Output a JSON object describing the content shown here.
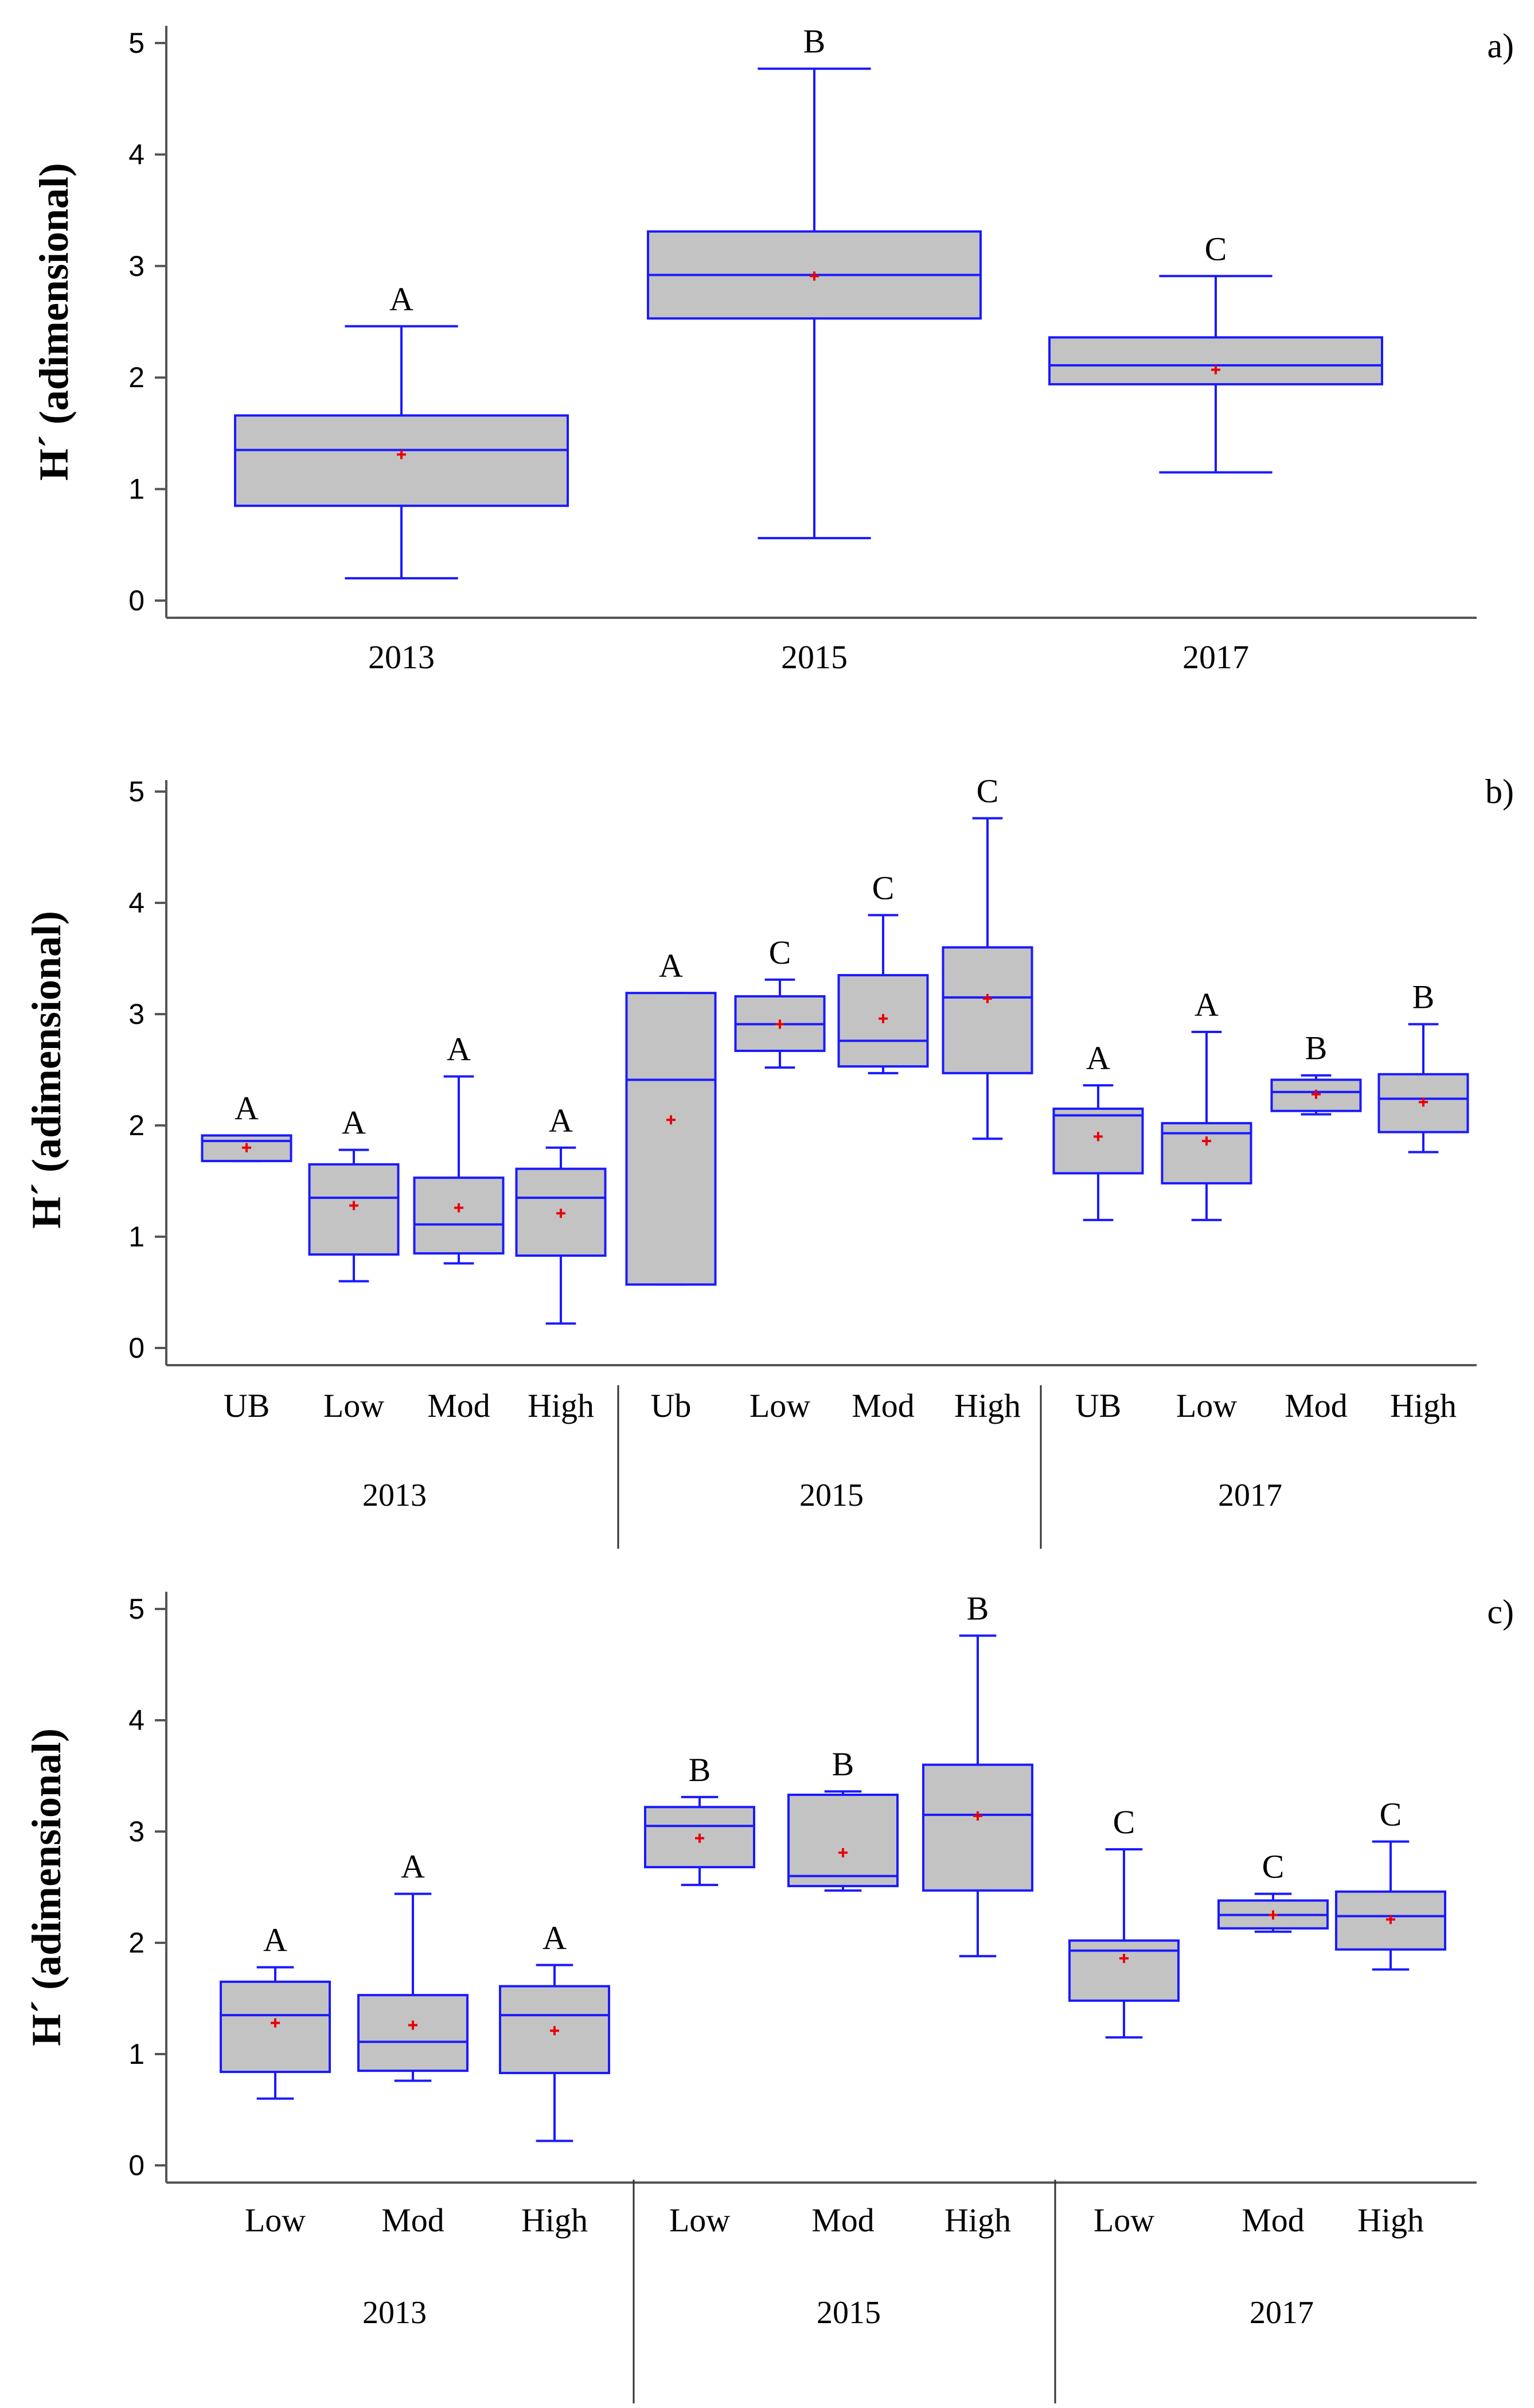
{
  "colors": {
    "box_fill": "#c3c3c3",
    "box_stroke": "#1a1aff",
    "mean_marker": "#e8000b",
    "axis": "#555555"
  },
  "chart_data": [
    {
      "type": "box",
      "panel": "a)",
      "ylabel": "H´ (adimensional)",
      "ylim": [
        0,
        5
      ],
      "yticks": [
        0,
        1,
        2,
        3,
        4,
        5
      ],
      "categories": [
        "2013",
        "2015",
        "2017"
      ],
      "groups": [],
      "boxes": [
        {
          "label": "2013",
          "min": 0.2,
          "q1": 0.85,
          "median": 1.35,
          "q3": 1.66,
          "max": 2.46,
          "mean": 1.31,
          "letter": "A"
        },
        {
          "label": "2015",
          "min": 0.56,
          "q1": 2.53,
          "median": 2.92,
          "q3": 3.31,
          "max": 4.77,
          "mean": 2.91,
          "letter": "B"
        },
        {
          "label": "2017",
          "min": 1.15,
          "q1": 1.94,
          "median": 2.11,
          "q3": 2.36,
          "max": 2.91,
          "mean": 2.07,
          "letter": "C"
        }
      ]
    },
    {
      "type": "box",
      "panel": "b)",
      "ylabel": "H´ (adimensional)",
      "ylim": [
        0,
        5
      ],
      "yticks": [
        0,
        1,
        2,
        3,
        4,
        5
      ],
      "categories": [
        "UB",
        "Low",
        "Mod",
        "High",
        "Ub",
        "Low",
        "Mod",
        "High",
        "UB",
        "Low",
        "Mod",
        "High"
      ],
      "groups": [
        {
          "name": "2013",
          "start": 0,
          "end": 3
        },
        {
          "name": "2015",
          "start": 4,
          "end": 7
        },
        {
          "name": "2017",
          "start": 8,
          "end": 11
        }
      ],
      "boxes": [
        {
          "label": "UB",
          "min": 1.68,
          "q1": 1.68,
          "median": 1.86,
          "q3": 1.91,
          "max": 1.91,
          "mean": 1.8,
          "letter": "A"
        },
        {
          "label": "Low",
          "min": 0.6,
          "q1": 0.84,
          "median": 1.35,
          "q3": 1.65,
          "max": 1.78,
          "mean": 1.28,
          "letter": "A"
        },
        {
          "label": "Mod",
          "min": 0.76,
          "q1": 0.85,
          "median": 1.11,
          "q3": 1.53,
          "max": 2.44,
          "mean": 1.26,
          "letter": "A"
        },
        {
          "label": "High",
          "min": 0.22,
          "q1": 0.83,
          "median": 1.35,
          "q3": 1.61,
          "max": 1.8,
          "mean": 1.21,
          "letter": "A"
        },
        {
          "label": "Ub",
          "min": 0.57,
          "q1": 0.57,
          "median": 2.41,
          "q3": 3.19,
          "max": 3.19,
          "mean": 2.05,
          "letter": "A"
        },
        {
          "label": "Low",
          "min": 2.52,
          "q1": 2.67,
          "median": 2.91,
          "q3": 3.16,
          "max": 3.31,
          "mean": 2.91,
          "letter": "C"
        },
        {
          "label": "Mod",
          "min": 2.47,
          "q1": 2.53,
          "median": 2.76,
          "q3": 3.35,
          "max": 3.89,
          "mean": 2.96,
          "letter": "C"
        },
        {
          "label": "High",
          "min": 1.88,
          "q1": 2.47,
          "median": 3.15,
          "q3": 3.6,
          "max": 4.76,
          "mean": 3.14,
          "letter": "C"
        },
        {
          "label": "UB",
          "min": 1.15,
          "q1": 1.57,
          "median": 2.09,
          "q3": 2.15,
          "max": 2.36,
          "mean": 1.9,
          "letter": "A"
        },
        {
          "label": "Low",
          "min": 1.15,
          "q1": 1.48,
          "median": 1.93,
          "q3": 2.02,
          "max": 2.84,
          "mean": 1.86,
          "letter": "A"
        },
        {
          "label": "Mod",
          "min": 2.1,
          "q1": 2.13,
          "median": 2.3,
          "q3": 2.41,
          "max": 2.45,
          "mean": 2.28,
          "letter": "B"
        },
        {
          "label": "High",
          "min": 1.76,
          "q1": 1.94,
          "median": 2.24,
          "q3": 2.46,
          "max": 2.91,
          "mean": 2.21,
          "letter": "B"
        }
      ]
    },
    {
      "type": "box",
      "panel": "c)",
      "ylabel": "H´ (adimensional)",
      "ylim": [
        0,
        5
      ],
      "yticks": [
        0,
        1,
        2,
        3,
        4,
        5
      ],
      "categories": [
        "Low",
        "Mod",
        "High",
        "Low",
        "Mod",
        "High",
        "Low",
        "Mod",
        "High"
      ],
      "groups": [
        {
          "name": "2013",
          "start": 0,
          "end": 2
        },
        {
          "name": "2015",
          "start": 3,
          "end": 5
        },
        {
          "name": "2017",
          "start": 6,
          "end": 8
        }
      ],
      "boxes": [
        {
          "label": "Low",
          "min": 0.6,
          "q1": 0.84,
          "median": 1.35,
          "q3": 1.65,
          "max": 1.78,
          "mean": 1.28,
          "letter": "A"
        },
        {
          "label": "Mod",
          "min": 0.76,
          "q1": 0.85,
          "median": 1.11,
          "q3": 1.53,
          "max": 2.44,
          "mean": 1.26,
          "letter": "A"
        },
        {
          "label": "High",
          "min": 0.22,
          "q1": 0.83,
          "median": 1.35,
          "q3": 1.61,
          "max": 1.8,
          "mean": 1.21,
          "letter": "A"
        },
        {
          "label": "Low",
          "min": 2.52,
          "q1": 2.68,
          "median": 3.05,
          "q3": 3.22,
          "max": 3.31,
          "mean": 2.94,
          "letter": "B"
        },
        {
          "label": "Mod",
          "min": 2.47,
          "q1": 2.51,
          "median": 2.6,
          "q3": 3.33,
          "max": 3.36,
          "mean": 2.81,
          "letter": "B"
        },
        {
          "label": "High",
          "min": 1.88,
          "q1": 2.47,
          "median": 3.15,
          "q3": 3.6,
          "max": 4.76,
          "mean": 3.14,
          "letter": "B"
        },
        {
          "label": "Low",
          "min": 1.15,
          "q1": 1.48,
          "median": 1.93,
          "q3": 2.02,
          "max": 2.84,
          "mean": 1.86,
          "letter": "C"
        },
        {
          "label": "Mod",
          "min": 2.1,
          "q1": 2.13,
          "median": 2.25,
          "q3": 2.38,
          "max": 2.44,
          "mean": 2.25,
          "letter": "C"
        },
        {
          "label": "High",
          "min": 1.76,
          "q1": 1.94,
          "median": 2.24,
          "q3": 2.46,
          "max": 2.91,
          "mean": 2.21,
          "letter": "C"
        }
      ]
    }
  ]
}
